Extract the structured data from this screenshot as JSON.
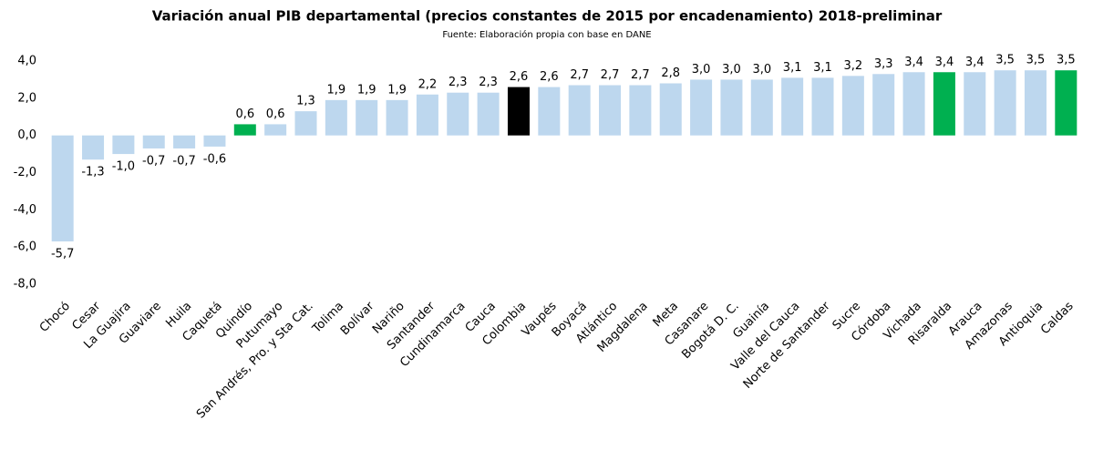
{
  "chart_data": {
    "type": "bar",
    "title": "Variación anual PIB departamental (precios constantes de 2015 por encadenamiento) 2018-preliminar",
    "subtitle": "Fuente: Elaboración propia con base en DANE",
    "categories": [
      "Chocó",
      "Cesar",
      "La Guajira",
      "Guaviare",
      "Huila",
      "Caquetá",
      "Quindío",
      "Putumayo",
      "San Andrés, Pro. y Sta Cat.",
      "Tolima",
      "Bolívar",
      "Nariño",
      "Santander",
      "Cundinamarca",
      "Cauca",
      "Colombia",
      "Vaupés",
      "Boyacá",
      "Atlántico",
      "Magdalena",
      "Meta",
      "Casanare",
      "Bogotá D. C.",
      "Guainía",
      "Valle del Cauca",
      "Norte de Santander",
      "Sucre",
      "Córdoba",
      "Vichada",
      "Risaralda",
      "Arauca",
      "Amazonas",
      "Antioquia",
      "Caldas"
    ],
    "values": [
      -5.7,
      -1.3,
      -1.0,
      -0.7,
      -0.7,
      -0.6,
      0.6,
      0.6,
      1.3,
      1.9,
      1.9,
      1.9,
      2.2,
      2.3,
      2.3,
      2.6,
      2.6,
      2.7,
      2.7,
      2.7,
      2.8,
      3.0,
      3.0,
      3.0,
      3.1,
      3.1,
      3.2,
      3.3,
      3.4,
      3.4,
      3.4,
      3.5,
      3.5,
      3.5
    ],
    "value_labels": [
      "-5,7",
      "-1,3",
      "-1,0",
      "-0,7",
      "-0,7",
      "-0,6",
      "0,6",
      "0,6",
      "1,3",
      "1,9",
      "1,9",
      "1,9",
      "2,2",
      "2,3",
      "2,3",
      "2,6",
      "2,6",
      "2,7",
      "2,7",
      "2,7",
      "2,8",
      "3,0",
      "3,0",
      "3,0",
      "3,1",
      "3,1",
      "3,2",
      "3,3",
      "3,4",
      "3,4",
      "3,4",
      "3,5",
      "3,5",
      "3,5"
    ],
    "colors": [
      "#bdd7ee",
      "#bdd7ee",
      "#bdd7ee",
      "#bdd7ee",
      "#bdd7ee",
      "#bdd7ee",
      "#00b050",
      "#bdd7ee",
      "#bdd7ee",
      "#bdd7ee",
      "#bdd7ee",
      "#bdd7ee",
      "#bdd7ee",
      "#bdd7ee",
      "#bdd7ee",
      "#000000",
      "#bdd7ee",
      "#bdd7ee",
      "#bdd7ee",
      "#bdd7ee",
      "#bdd7ee",
      "#bdd7ee",
      "#bdd7ee",
      "#bdd7ee",
      "#bdd7ee",
      "#bdd7ee",
      "#bdd7ee",
      "#bdd7ee",
      "#bdd7ee",
      "#00b050",
      "#bdd7ee",
      "#bdd7ee",
      "#bdd7ee",
      "#00b050"
    ],
    "ylim": [
      -8,
      4
    ],
    "yticks": [
      {
        "value": -8,
        "label": "-8,0"
      },
      {
        "value": -6,
        "label": "-6,0"
      },
      {
        "value": -4,
        "label": "-4,0"
      },
      {
        "value": -2,
        "label": "-2,0"
      },
      {
        "value": 0,
        "label": "0,0"
      },
      {
        "value": 2,
        "label": "2,0"
      },
      {
        "value": 4,
        "label": "4,0"
      }
    ],
    "grid": false
  }
}
